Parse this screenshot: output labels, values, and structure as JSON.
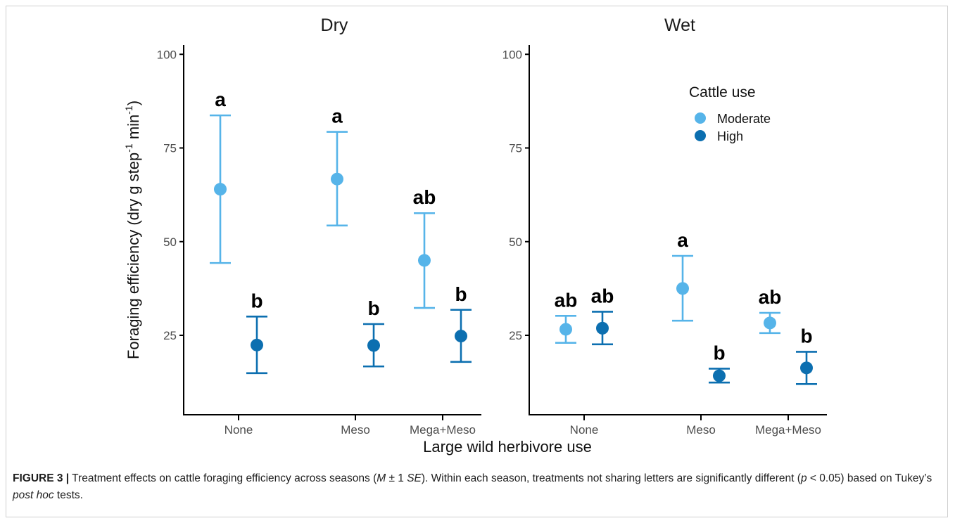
{
  "chart_data": {
    "type": "scatter",
    "subtype": "point-with-error-bars",
    "panels": [
      "Dry",
      "Wet"
    ],
    "categories": [
      "None",
      "Meso",
      "Mega+Meso"
    ],
    "ylabel_main": "Foraging efficiency (dry g step",
    "ylabel_sup1": "-1",
    "ylabel_mid": " min",
    "ylabel_sup2": "-1",
    "ylabel_end": ")",
    "xlabel": "Large wild herbivore use",
    "ylim": [
      3,
      102
    ],
    "yticks": [
      25,
      50,
      75,
      100
    ],
    "legend": {
      "title": "Cattle use",
      "position": "top-right of Wet panel"
    },
    "series": [
      {
        "name": "Moderate",
        "color": "#56b4e9"
      },
      {
        "name": "High",
        "color": "#0c6fb0"
      }
    ],
    "points": [
      {
        "panel": "Dry",
        "category": "None",
        "series": "Moderate",
        "y": 64,
        "lower": 44.3,
        "upper": 83.7,
        "letter": "a"
      },
      {
        "panel": "Dry",
        "category": "None",
        "series": "High",
        "y": 22.4,
        "lower": 14.9,
        "upper": 30,
        "letter": "b"
      },
      {
        "panel": "Dry",
        "category": "Meso",
        "series": "Moderate",
        "y": 66.7,
        "lower": 54.3,
        "upper": 79.3,
        "letter": "a"
      },
      {
        "panel": "Dry",
        "category": "Meso",
        "series": "High",
        "y": 22.3,
        "lower": 16.7,
        "upper": 28,
        "letter": "b"
      },
      {
        "panel": "Dry",
        "category": "Mega+Meso",
        "series": "Moderate",
        "y": 45,
        "lower": 32.3,
        "upper": 57.6,
        "letter": "ab"
      },
      {
        "panel": "Dry",
        "category": "Mega+Meso",
        "series": "High",
        "y": 24.8,
        "lower": 17.9,
        "upper": 31.8,
        "letter": "b"
      },
      {
        "panel": "Wet",
        "category": "None",
        "series": "Moderate",
        "y": 26.6,
        "lower": 23,
        "upper": 30.2,
        "letter": "ab"
      },
      {
        "panel": "Wet",
        "category": "None",
        "series": "High",
        "y": 26.9,
        "lower": 22.6,
        "upper": 31.3,
        "letter": "ab"
      },
      {
        "panel": "Wet",
        "category": "Meso",
        "series": "Moderate",
        "y": 37.5,
        "lower": 28.9,
        "upper": 46.2,
        "letter": "a"
      },
      {
        "panel": "Wet",
        "category": "Meso",
        "series": "High",
        "y": 14.2,
        "lower": 12.4,
        "upper": 16.1,
        "letter": "b"
      },
      {
        "panel": "Wet",
        "category": "Mega+Meso",
        "series": "Moderate",
        "y": 28.3,
        "lower": 25.6,
        "upper": 31,
        "letter": "ab"
      },
      {
        "panel": "Wet",
        "category": "Mega+Meso",
        "series": "High",
        "y": 16.3,
        "lower": 12,
        "upper": 20.6,
        "letter": "b"
      }
    ]
  },
  "caption": {
    "label": "FIGURE 3 |",
    "t1": " Treatment effects on cattle foraging efficiency across seasons (",
    "t1_it": "M",
    "t2": " ± 1 ",
    "t2_it": "SE",
    "t3": "). Within each season, treatments not sharing letters are significantly different (",
    "t3_it": "p",
    "t4": " < 0.05) based on Tukey’s ",
    "t4_it": "post hoc",
    "t5": " tests."
  }
}
